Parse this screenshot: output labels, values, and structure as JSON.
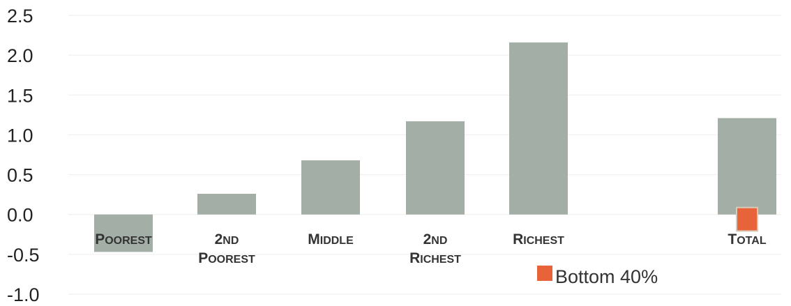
{
  "chart_data": {
    "type": "bar",
    "categories": [
      {
        "lines": [
          [
            "P",
            "OOREST"
          ]
        ]
      },
      {
        "lines": [
          [
            "2",
            "ND"
          ],
          [
            "P",
            "OOREST"
          ]
        ]
      },
      {
        "lines": [
          [
            "M",
            "IDDLE"
          ]
        ]
      },
      {
        "lines": [
          [
            "2",
            "ND"
          ],
          [
            "R",
            "ICHEST"
          ]
        ]
      },
      {
        "lines": [
          [
            "R",
            "ICHEST"
          ]
        ]
      },
      {
        "lines": [
          [
            "T",
            "OTAL"
          ]
        ]
      }
    ],
    "series": [
      {
        "values": [
          -0.47,
          0.26,
          0.68,
          1.17,
          2.16,
          1.21
        ],
        "color": "#a2aea6"
      },
      {
        "name": "Bottom 40%",
        "values": [
          null,
          null,
          null,
          null,
          null,
          -0.12
        ],
        "color": "#e8633a"
      }
    ],
    "yticks": [
      "2.5",
      "2.0",
      "1.5",
      "1.0",
      "0.5",
      "0.0",
      "-0.5",
      "-1.0"
    ],
    "ylim": [
      -1.0,
      2.5
    ],
    "grid": true,
    "legend": {
      "position": "bottom-right"
    }
  }
}
